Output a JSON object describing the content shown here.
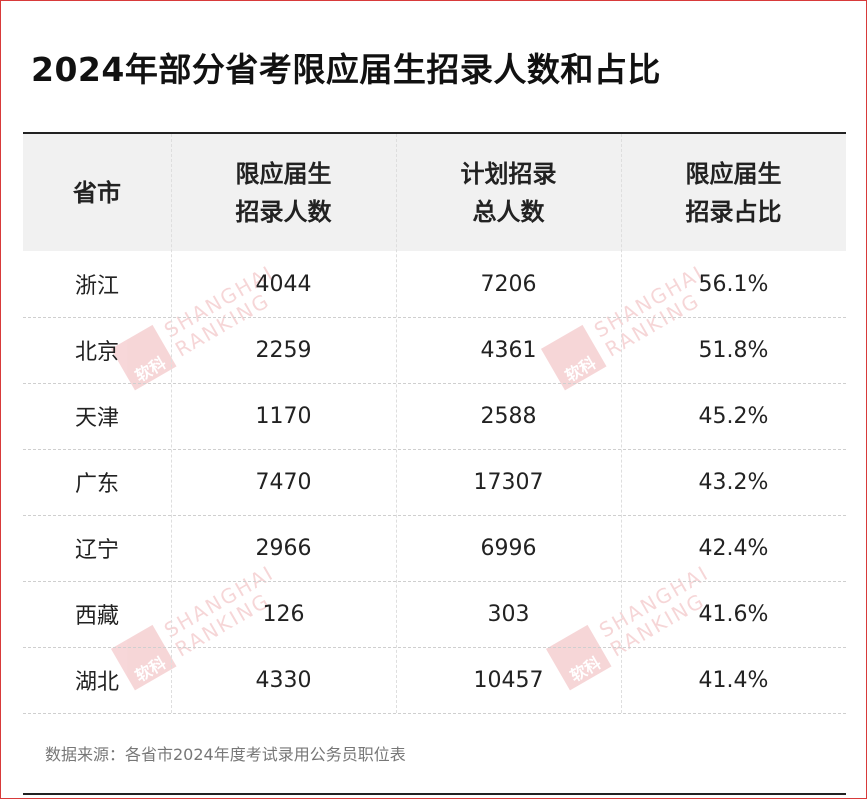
{
  "header": {
    "title": "2024年部分省考限应届生招录人数和占比"
  },
  "table": {
    "columns": [
      [
        "省市"
      ],
      [
        "限应届生",
        "招录人数"
      ],
      [
        "计划招录",
        "总人数"
      ],
      [
        "限应届生",
        "招录占比"
      ]
    ],
    "rows": [
      [
        "浙江",
        "4044",
        "7206",
        "56.1%"
      ],
      [
        "北京",
        "2259",
        "4361",
        "51.8%"
      ],
      [
        "天津",
        "1170",
        "2588",
        "45.2%"
      ],
      [
        "广东",
        "7470",
        "17307",
        "43.2%"
      ],
      [
        "辽宁",
        "2966",
        "6996",
        "42.4%"
      ],
      [
        "西藏",
        "126",
        "303",
        "41.6%"
      ],
      [
        "湖北",
        "4330",
        "10457",
        "41.4%"
      ]
    ]
  },
  "watermark": {
    "logo": "软科",
    "lines": [
      "SHANGHAI",
      "RANKING"
    ]
  },
  "footer": {
    "source": "数据来源：各省市2024年度考试录用公务员职位表"
  }
}
